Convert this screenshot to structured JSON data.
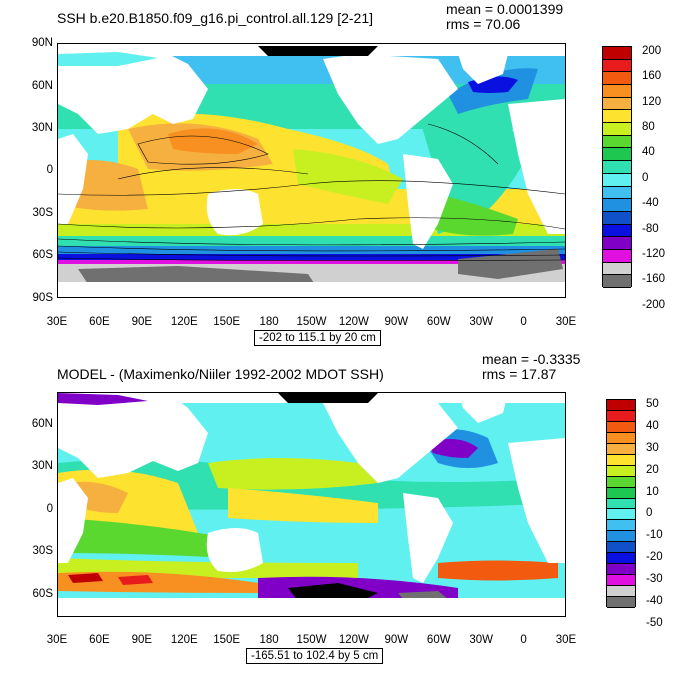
{
  "panels": [
    {
      "id": "top",
      "title": "SSH b.e20.B1850.f09_g16.pi_control.all.129 [2-21]",
      "stats": {
        "mean": "mean = 0.0001399",
        "rms": "rms = 70.06"
      },
      "lat_labels": [
        "90N",
        "60N",
        "30N",
        "0",
        "30S",
        "60S",
        "90S"
      ],
      "lon_labels": [
        "30E",
        "60E",
        "90E",
        "120E",
        "150E",
        "180",
        "150W",
        "120W",
        "90W",
        "60W",
        "30W",
        "0",
        "30E"
      ],
      "contour_info": "-202 to 115.1 by 20 cm",
      "colorbar": {
        "labels": [
          "200",
          "160",
          "120",
          "80",
          "40",
          "0",
          "-40",
          "-80",
          "-120",
          "-160",
          "-200"
        ],
        "colors": [
          "#c00000",
          "#e81c1c",
          "#f25a10",
          "#f79020",
          "#f6b040",
          "#fde230",
          "#c8f020",
          "#5ad830",
          "#1ec850",
          "#30e0b0",
          "#60f0f0",
          "#40c0f0",
          "#2090e0",
          "#1050c8",
          "#0a10e0",
          "#8000c8",
          "#e010e0",
          "#d0d0d0",
          "#707070"
        ]
      }
    },
    {
      "id": "bottom",
      "title": "MODEL - (Maximenko/Niiler 1992-2002 MDOT SSH)",
      "stats": {
        "mean": "mean = -0.3335",
        "rms": "rms = 17.87"
      },
      "lat_labels": [
        "60N",
        "30N",
        "0",
        "30S",
        "60S"
      ],
      "lon_labels": [
        "30E",
        "60E",
        "90E",
        "120E",
        "150E",
        "180",
        "150W",
        "120W",
        "90W",
        "60W",
        "30W",
        "0",
        "30E"
      ],
      "contour_info": "-165.51 to 102.4 by 5 cm",
      "colorbar": {
        "labels": [
          "50",
          "40",
          "30",
          "20",
          "10",
          "0",
          "-10",
          "-20",
          "-30",
          "-40",
          "-50"
        ],
        "colors": [
          "#c00000",
          "#e81c1c",
          "#f25a10",
          "#f79020",
          "#f6b040",
          "#fde230",
          "#c8f020",
          "#5ad830",
          "#1ec850",
          "#30e0b0",
          "#60f0f0",
          "#40c0f0",
          "#2090e0",
          "#1050c8",
          "#0a10e0",
          "#8000c8",
          "#e010e0",
          "#d0d0d0",
          "#707070"
        ]
      }
    }
  ]
}
